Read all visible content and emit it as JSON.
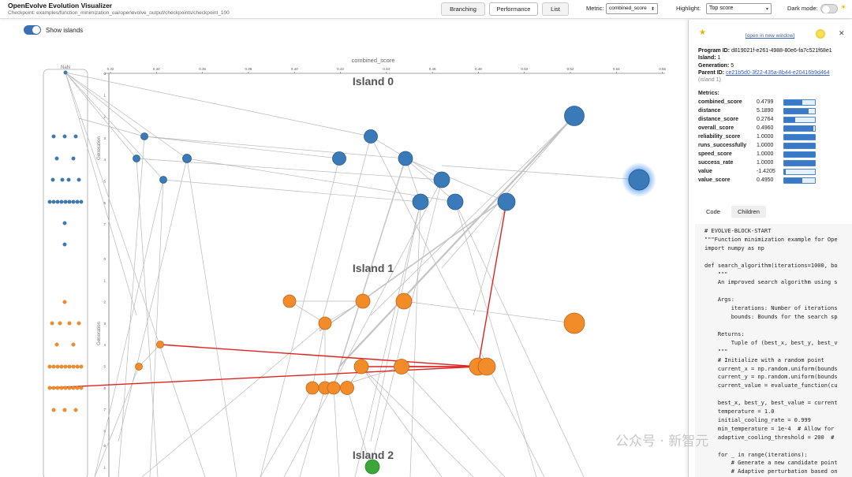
{
  "header": {
    "title": "OpenEvolve Evolution Visualizer",
    "checkpoint": "Checkpoint: examples/function_minimization_oai/openevolve_output/checkpoints/checkpoint_100",
    "tabs": [
      {
        "label": "Branching",
        "active": false
      },
      {
        "label": "Performance",
        "active": true
      },
      {
        "label": "List",
        "active": false
      }
    ],
    "metric_label": "Metric:",
    "metric_value": "combined_score",
    "highlight_label": "Highlight:",
    "highlight_value": "Top score",
    "dark_mode_label": "Dark mode:",
    "dark_mode_on": false
  },
  "graph": {
    "show_islands_label": "Show islands",
    "show_islands_on": true,
    "nan_label": "NaN",
    "axis_title": "combined_score",
    "x_ticks": [
      "0.32",
      "0.34",
      "0.36",
      "0.38",
      "0.40",
      "0.42",
      "0.44",
      "0.46",
      "0.48",
      "0.50",
      "0.52",
      "0.54",
      "0.56"
    ],
    "y_axis_label": "Generation",
    "islands": [
      {
        "label": "Island 0",
        "color": "#3a7ab8"
      },
      {
        "label": "Island 1",
        "color": "#f28c28"
      },
      {
        "label": "Island 2",
        "color": "#3aa63a"
      }
    ]
  },
  "panel": {
    "open_link": "[open in new window]",
    "program_id_label": "Program ID:",
    "program_id": "d819021f-e261-4988-80e6-fa7c521f68e1",
    "island_label": "Island:",
    "island": "1",
    "generation_label": "Generation:",
    "generation": "5",
    "parent_label": "Parent ID:",
    "parent_id": "ce21b5d0-3f22-435a-8b44-e20416b9d464",
    "parent_island": "(island 1)",
    "metrics_title": "Metrics:",
    "metrics": [
      {
        "name": "combined_score",
        "value": "0.4799",
        "fill": 0.6
      },
      {
        "name": "distance",
        "value": "5.1890",
        "fill": 0.8
      },
      {
        "name": "distance_score",
        "value": "0.2764",
        "fill": 0.35
      },
      {
        "name": "overall_score",
        "value": "0.4960",
        "fill": 0.95
      },
      {
        "name": "reliability_score",
        "value": "1.0000",
        "fill": 1.0
      },
      {
        "name": "runs_successfully",
        "value": "1.0000",
        "fill": 1.0
      },
      {
        "name": "speed_score",
        "value": "1.0000",
        "fill": 1.0
      },
      {
        "name": "success_rate",
        "value": "1.0000",
        "fill": 1.0
      },
      {
        "name": "value",
        "value": "-1.4205",
        "fill": 0.05
      },
      {
        "name": "value_score",
        "value": "0.4950",
        "fill": 0.6
      }
    ],
    "code_tabs": [
      "Code",
      "Children"
    ],
    "code": "# EVOLVE-BLOCK-START\n\"\"\"Function minimization example for Ope\nimport numpy as np\n\ndef search_algorithm(iterations=1000, bo\n    \"\"\"\n    An improved search algorithm using s\n\n    Args:\n        iterations: Number of iterations\n        bounds: Bounds for the search sp\n\n    Returns:\n        Tuple of (best_x, best_y, best_v\n    \"\"\"\n    # Initialize with a random point\n    current_x = np.random.uniform(bounds\n    current_y = np.random.uniform(bounds\n    current_value = evaluate_function(cu\n\n    best_x, best_y, best_value = current\n    temperature = 1.0\n    initial_cooling_rate = 0.999\n    min_temperature = 1e-4  # Allow for\n    adaptive_cooling_threshold = 200  #\n\n    for _ in range(iterations):\n        # Generate a new candidate point\n        # Adaptive perturbation based on\n        # Dynamic perturbation scale bas"
  },
  "watermark": "公众号 · 新智元"
}
